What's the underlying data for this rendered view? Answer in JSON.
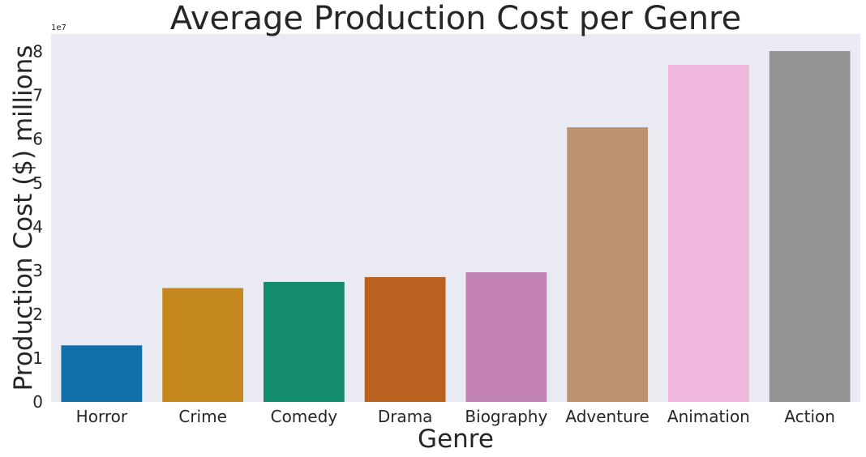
{
  "chart_data": {
    "type": "bar",
    "title": "Average Production Cost per Genre",
    "xlabel": "Genre",
    "ylabel": "Production Cost ($) millions",
    "offset_text": "1e7",
    "categories": [
      "Horror",
      "Crime",
      "Comedy",
      "Drama",
      "Biography",
      "Adventure",
      "Animation",
      "Action"
    ],
    "values": [
      12900000,
      26000000,
      27400000,
      28500000,
      29600000,
      62700000,
      77000000,
      80100000
    ],
    "colors": [
      "#1170aa",
      "#c4881e",
      "#138c6b",
      "#ba6120",
      "#c282b5",
      "#bd9270",
      "#f0b7dd",
      "#949494"
    ],
    "yticks": [
      0,
      1,
      2,
      3,
      4,
      5,
      6,
      7,
      8
    ],
    "ylim": [
      0,
      84000000
    ],
    "grid": false,
    "background": "#eaeaf2"
  }
}
